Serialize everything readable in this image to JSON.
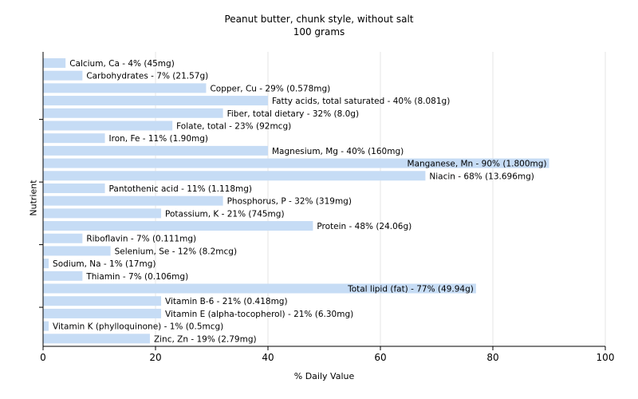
{
  "chart_data": {
    "type": "bar",
    "orientation": "horizontal",
    "title": "Peanut butter, chunk style, without salt",
    "subtitle": "100 grams",
    "xlabel": "% Daily Value",
    "ylabel": "Nutrient",
    "xlim": [
      0,
      100
    ],
    "xticks": [
      0,
      20,
      40,
      60,
      80,
      100
    ],
    "grid": true,
    "bar_color": "#c6dcf5",
    "categories": [
      "Calcium, Ca",
      "Carbohydrates",
      "Copper, Cu",
      "Fatty acids, total saturated",
      "Fiber, total dietary",
      "Folate, total",
      "Iron, Fe",
      "Magnesium, Mg",
      "Manganese, Mn",
      "Niacin",
      "Pantothenic acid",
      "Phosphorus, P",
      "Potassium, K",
      "Protein",
      "Riboflavin",
      "Selenium, Se",
      "Sodium, Na",
      "Thiamin",
      "Total lipid (fat)",
      "Vitamin B-6",
      "Vitamin E (alpha-tocopherol)",
      "Vitamin K (phylloquinone)",
      "Zinc, Zn"
    ],
    "values": [
      4,
      7,
      29,
      40,
      32,
      23,
      11,
      40,
      90,
      68,
      11,
      32,
      21,
      48,
      7,
      12,
      1,
      7,
      77,
      21,
      21,
      1,
      19
    ],
    "labels": [
      "Calcium, Ca - 4% (45mg)",
      "Carbohydrates - 7% (21.57g)",
      "Copper, Cu - 29% (0.578mg)",
      "Fatty acids, total saturated - 40% (8.081g)",
      "Fiber, total dietary - 32% (8.0g)",
      "Folate, total - 23% (92mcg)",
      "Iron, Fe - 11% (1.90mg)",
      "Magnesium, Mg - 40% (160mg)",
      "Manganese, Mn - 90% (1.800mg)",
      "Niacin - 68% (13.696mg)",
      "Pantothenic acid - 11% (1.118mg)",
      "Phosphorus, P - 32% (319mg)",
      "Potassium, K - 21% (745mg)",
      "Protein - 48% (24.06g)",
      "Riboflavin - 7% (0.111mg)",
      "Selenium, Se - 12% (8.2mcg)",
      "Sodium, Na - 1% (17mg)",
      "Thiamin - 7% (0.106mg)",
      "Total lipid (fat) - 77% (49.94g)",
      "Vitamin B-6 - 21% (0.418mg)",
      "Vitamin E (alpha-tocopherol) - 21% (6.30mg)",
      "Vitamin K (phylloquinone) - 1% (0.5mcg)",
      "Zinc, Zn - 19% (2.79mg)"
    ]
  }
}
